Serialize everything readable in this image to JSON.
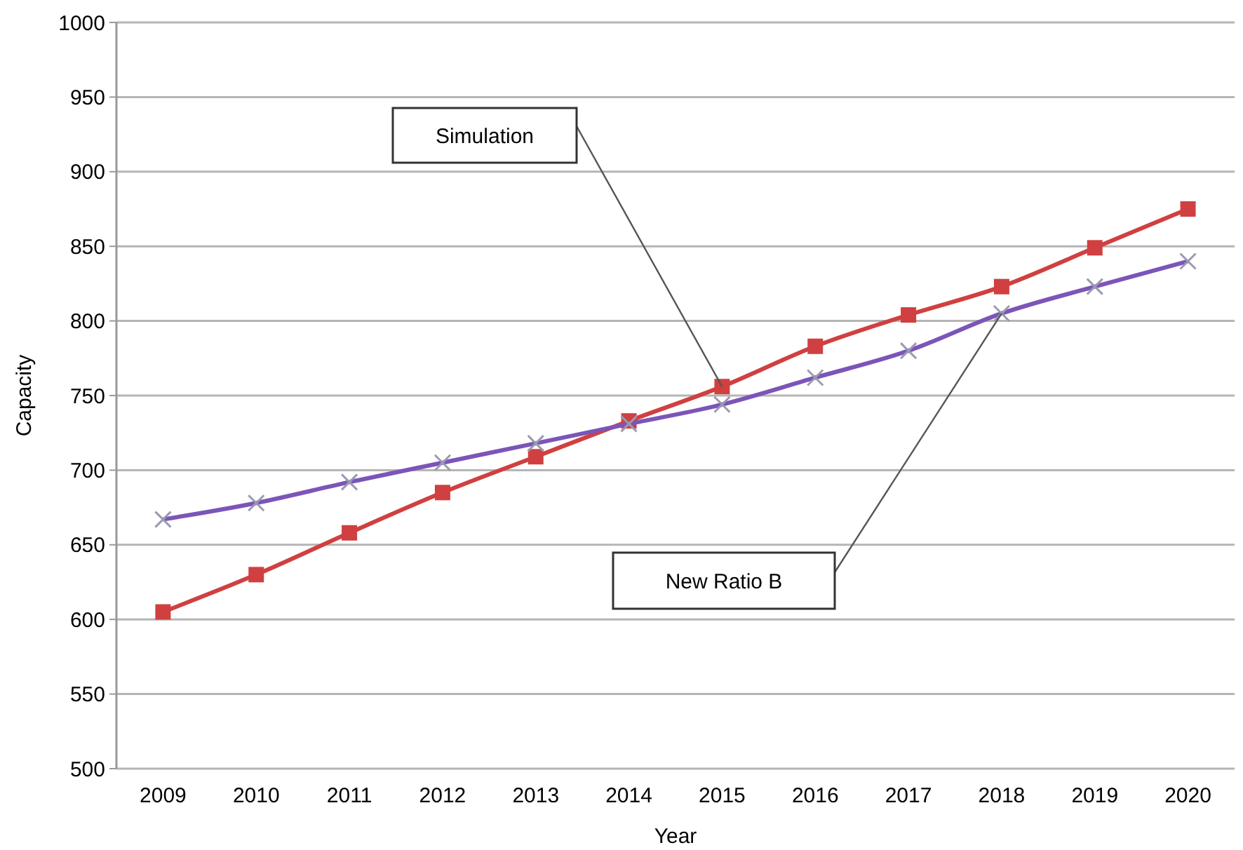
{
  "chart_data": {
    "type": "line",
    "xlabel": "Year",
    "ylabel": "Capacity",
    "categories": [
      "2009",
      "2010",
      "2011",
      "2012",
      "2013",
      "2014",
      "2015",
      "2016",
      "2017",
      "2018",
      "2019",
      "2020"
    ],
    "series": [
      {
        "color": "#d04040",
        "marker": "square",
        "values": [
          605,
          630,
          658,
          685,
          709,
          733,
          756,
          783,
          804,
          823,
          849,
          875
        ]
      },
      {
        "color": "#7b55b8",
        "marker": "cross",
        "values": [
          667,
          678,
          692,
          705,
          718,
          731,
          744,
          762,
          780,
          805,
          823,
          840
        ]
      }
    ],
    "ylim": [
      500,
      1000
    ],
    "yticks": [
      500,
      550,
      600,
      650,
      700,
      750,
      800,
      850,
      900,
      950,
      1000
    ],
    "grid": "y",
    "line_style": "solid",
    "annotations": [
      "Simulation",
      "New Ratio B"
    ]
  }
}
